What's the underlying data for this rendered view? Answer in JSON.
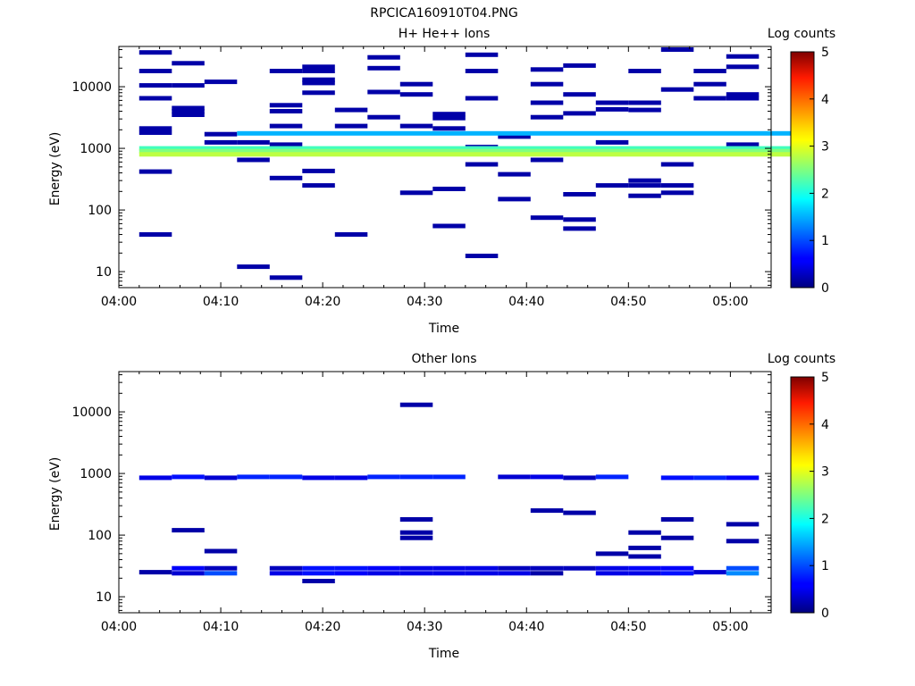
{
  "page_title": "RPCICA160910T04.PNG",
  "colorbar": {
    "label": "Log counts",
    "ticks": [
      "0",
      "1",
      "2",
      "3",
      "4",
      "5"
    ],
    "range": [
      0,
      5
    ]
  },
  "chart_data": [
    {
      "type": "heatmap",
      "title": "H+ He++ Ions",
      "xlabel": "Time",
      "ylabel": "Energy (eV)",
      "x_ticks": [
        "04:00",
        "04:10",
        "04:20",
        "04:30",
        "04:40",
        "04:50",
        "05:00"
      ],
      "y_ticks": [
        "10",
        "100",
        "1000",
        "10000"
      ],
      "y_scale": "log",
      "ylim": [
        5.5,
        45000
      ],
      "xlim_minutes": [
        0,
        64
      ],
      "time_bins_min": [
        2.0,
        5.2,
        8.4,
        11.6,
        14.8,
        18.0,
        21.2,
        24.4,
        27.6,
        30.8,
        34.0,
        37.2,
        40.4,
        43.6,
        46.8,
        50.0,
        53.2,
        56.4,
        59.6,
        62.8
      ],
      "cells": [
        {
          "t": 0,
          "e": 36000,
          "v": 0.2
        },
        {
          "t": 0,
          "e": 18000,
          "v": 0.2
        },
        {
          "t": 0,
          "e": 10500,
          "v": 0.2
        },
        {
          "t": 0,
          "e": 6500,
          "v": 0.2
        },
        {
          "t": 0,
          "e": 2100,
          "v": 0.2
        },
        {
          "t": 0,
          "e": 1800,
          "v": 0.2
        },
        {
          "t": 0,
          "e": 420,
          "v": 0.2
        },
        {
          "t": 0,
          "e": 40,
          "v": 0.2
        },
        {
          "t": 1,
          "e": 24000,
          "v": 0.2
        },
        {
          "t": 1,
          "e": 10500,
          "v": 0.2
        },
        {
          "t": 1,
          "e": 4500,
          "v": 0.2
        },
        {
          "t": 1,
          "e": 4000,
          "v": 0.2
        },
        {
          "t": 1,
          "e": 3500,
          "v": 0.2
        },
        {
          "t": 2,
          "e": 12000,
          "v": 0.2
        },
        {
          "t": 2,
          "e": 1700,
          "v": 0.2
        },
        {
          "t": 2,
          "e": 1250,
          "v": 0.2
        },
        {
          "t": 3,
          "e": 1250,
          "v": 0.2
        },
        {
          "t": 3,
          "e": 650,
          "v": 0.2
        },
        {
          "t": 3,
          "e": 12,
          "v": 0.2
        },
        {
          "t": 4,
          "e": 18000,
          "v": 0.2
        },
        {
          "t": 4,
          "e": 5000,
          "v": 0.2
        },
        {
          "t": 4,
          "e": 4000,
          "v": 0.2
        },
        {
          "t": 4,
          "e": 2300,
          "v": 0.2
        },
        {
          "t": 4,
          "e": 1150,
          "v": 0.2
        },
        {
          "t": 4,
          "e": 330,
          "v": 0.2
        },
        {
          "t": 4,
          "e": 8,
          "v": 0.2
        },
        {
          "t": 5,
          "e": 21000,
          "v": 0.2
        },
        {
          "t": 5,
          "e": 18000,
          "v": 0.2
        },
        {
          "t": 5,
          "e": 13000,
          "v": 0.2
        },
        {
          "t": 5,
          "e": 11500,
          "v": 0.2
        },
        {
          "t": 5,
          "e": 8000,
          "v": 0.2
        },
        {
          "t": 5,
          "e": 430,
          "v": 0.2
        },
        {
          "t": 5,
          "e": 250,
          "v": 0.2
        },
        {
          "t": 6,
          "e": 4200,
          "v": 0.2
        },
        {
          "t": 6,
          "e": 2300,
          "v": 0.2
        },
        {
          "t": 6,
          "e": 40,
          "v": 0.2
        },
        {
          "t": 7,
          "e": 30000,
          "v": 0.2
        },
        {
          "t": 7,
          "e": 20000,
          "v": 0.2
        },
        {
          "t": 7,
          "e": 8200,
          "v": 0.2
        },
        {
          "t": 7,
          "e": 3200,
          "v": 0.2
        },
        {
          "t": 8,
          "e": 11000,
          "v": 0.2
        },
        {
          "t": 8,
          "e": 7500,
          "v": 0.2
        },
        {
          "t": 8,
          "e": 2300,
          "v": 0.2
        },
        {
          "t": 8,
          "e": 190,
          "v": 0.2
        },
        {
          "t": 9,
          "e": 3600,
          "v": 0.2
        },
        {
          "t": 9,
          "e": 3100,
          "v": 0.2
        },
        {
          "t": 9,
          "e": 2100,
          "v": 0.2
        },
        {
          "t": 9,
          "e": 220,
          "v": 0.2
        },
        {
          "t": 9,
          "e": 55,
          "v": 0.2
        },
        {
          "t": 10,
          "e": 33000,
          "v": 0.2
        },
        {
          "t": 10,
          "e": 18000,
          "v": 0.2
        },
        {
          "t": 10,
          "e": 6500,
          "v": 0.2
        },
        {
          "t": 10,
          "e": 1050,
          "v": 0.2
        },
        {
          "t": 10,
          "e": 550,
          "v": 0.2
        },
        {
          "t": 10,
          "e": 18,
          "v": 0.2
        },
        {
          "t": 11,
          "e": 1550,
          "v": 0.2
        },
        {
          "t": 11,
          "e": 380,
          "v": 0.2
        },
        {
          "t": 11,
          "e": 150,
          "v": 0.2
        },
        {
          "t": 12,
          "e": 19000,
          "v": 0.2
        },
        {
          "t": 12,
          "e": 11000,
          "v": 0.2
        },
        {
          "t": 12,
          "e": 5500,
          "v": 0.2
        },
        {
          "t": 12,
          "e": 3200,
          "v": 0.2
        },
        {
          "t": 12,
          "e": 650,
          "v": 0.2
        },
        {
          "t": 12,
          "e": 75,
          "v": 0.2
        },
        {
          "t": 13,
          "e": 22000,
          "v": 0.2
        },
        {
          "t": 13,
          "e": 7500,
          "v": 0.2
        },
        {
          "t": 13,
          "e": 3700,
          "v": 0.2
        },
        {
          "t": 13,
          "e": 180,
          "v": 0.2
        },
        {
          "t": 13,
          "e": 70,
          "v": 0.2
        },
        {
          "t": 13,
          "e": 50,
          "v": 0.2
        },
        {
          "t": 14,
          "e": 5500,
          "v": 0.2
        },
        {
          "t": 14,
          "e": 4300,
          "v": 0.2
        },
        {
          "t": 14,
          "e": 1250,
          "v": 0.2
        },
        {
          "t": 14,
          "e": 250,
          "v": 0.2
        },
        {
          "t": 15,
          "e": 18000,
          "v": 0.2
        },
        {
          "t": 15,
          "e": 5500,
          "v": 0.2
        },
        {
          "t": 15,
          "e": 4200,
          "v": 0.2
        },
        {
          "t": 15,
          "e": 300,
          "v": 0.2
        },
        {
          "t": 15,
          "e": 250,
          "v": 0.2
        },
        {
          "t": 15,
          "e": 170,
          "v": 0.2
        },
        {
          "t": 16,
          "e": 40000,
          "v": 0.2
        },
        {
          "t": 16,
          "e": 9000,
          "v": 0.2
        },
        {
          "t": 16,
          "e": 550,
          "v": 0.2
        },
        {
          "t": 16,
          "e": 250,
          "v": 0.2
        },
        {
          "t": 16,
          "e": 190,
          "v": 0.2
        },
        {
          "t": 17,
          "e": 18000,
          "v": 0.2
        },
        {
          "t": 17,
          "e": 11000,
          "v": 0.2
        },
        {
          "t": 17,
          "e": 6500,
          "v": 0.2
        },
        {
          "t": 18,
          "e": 31000,
          "v": 0.2
        },
        {
          "t": 18,
          "e": 21000,
          "v": 0.2
        },
        {
          "t": 18,
          "e": 7500,
          "v": 0.2
        },
        {
          "t": 18,
          "e": 6500,
          "v": 0.2
        },
        {
          "t": 18,
          "e": 1150,
          "v": 0.2
        }
      ],
      "bands": [
        {
          "t0": 0,
          "t1": 19,
          "e": 1000,
          "v": 2.2
        },
        {
          "t0": 0,
          "t1": 19,
          "e": 900,
          "v": 2.5
        },
        {
          "t0": 0,
          "t1": 19,
          "e": 800,
          "v": 2.8
        },
        {
          "t0": 3,
          "t1": 19,
          "e": 1750,
          "v": 1.5
        }
      ]
    },
    {
      "type": "heatmap",
      "title": "Other Ions",
      "xlabel": "Time",
      "ylabel": "Energy (eV)",
      "x_ticks": [
        "04:00",
        "04:10",
        "04:20",
        "04:30",
        "04:40",
        "04:50",
        "05:00"
      ],
      "y_ticks": [
        "10",
        "100",
        "1000",
        "10000"
      ],
      "y_scale": "log",
      "ylim": [
        5.5,
        45000
      ],
      "xlim_minutes": [
        0,
        64
      ],
      "time_bins_min": [
        2.0,
        5.2,
        8.4,
        11.6,
        14.8,
        18.0,
        21.2,
        24.4,
        27.6,
        30.8,
        34.0,
        37.2,
        40.4,
        43.6,
        46.8,
        50.0,
        53.2,
        56.4,
        59.6,
        62.8
      ],
      "cells": [
        {
          "t": 0,
          "e": 850,
          "v": 0.5
        },
        {
          "t": 1,
          "e": 880,
          "v": 0.7
        },
        {
          "t": 2,
          "e": 850,
          "v": 0.4
        },
        {
          "t": 3,
          "e": 880,
          "v": 0.8
        },
        {
          "t": 4,
          "e": 880,
          "v": 0.8
        },
        {
          "t": 5,
          "e": 850,
          "v": 0.5
        },
        {
          "t": 6,
          "e": 850,
          "v": 0.5
        },
        {
          "t": 7,
          "e": 880,
          "v": 0.8
        },
        {
          "t": 8,
          "e": 880,
          "v": 0.8
        },
        {
          "t": 9,
          "e": 880,
          "v": 0.8
        },
        {
          "t": 11,
          "e": 880,
          "v": 0.4
        },
        {
          "t": 12,
          "e": 880,
          "v": 0.5
        },
        {
          "t": 13,
          "e": 850,
          "v": 0.3
        },
        {
          "t": 14,
          "e": 880,
          "v": 0.8
        },
        {
          "t": 16,
          "e": 850,
          "v": 0.7
        },
        {
          "t": 17,
          "e": 850,
          "v": 0.8
        },
        {
          "t": 18,
          "e": 850,
          "v": 0.6
        },
        {
          "t": 1,
          "e": 120,
          "v": 0.2
        },
        {
          "t": 2,
          "e": 55,
          "v": 0.2
        },
        {
          "t": 8,
          "e": 13000,
          "v": 0.2
        },
        {
          "t": 8,
          "e": 180,
          "v": 0.2
        },
        {
          "t": 8,
          "e": 110,
          "v": 0.2
        },
        {
          "t": 8,
          "e": 90,
          "v": 0.2
        },
        {
          "t": 12,
          "e": 250,
          "v": 0.2
        },
        {
          "t": 13,
          "e": 230,
          "v": 0.2
        },
        {
          "t": 14,
          "e": 50,
          "v": 0.2
        },
        {
          "t": 15,
          "e": 110,
          "v": 0.2
        },
        {
          "t": 15,
          "e": 62,
          "v": 0.2
        },
        {
          "t": 15,
          "e": 45,
          "v": 0.2
        },
        {
          "t": 16,
          "e": 180,
          "v": 0.2
        },
        {
          "t": 16,
          "e": 90,
          "v": 0.2
        },
        {
          "t": 18,
          "e": 150,
          "v": 0.2
        },
        {
          "t": 18,
          "e": 80,
          "v": 0.2
        },
        {
          "t": 0,
          "e": 25,
          "v": 0.2
        },
        {
          "t": 1,
          "e": 29,
          "v": 0.6
        },
        {
          "t": 1,
          "e": 24,
          "v": 0.4
        },
        {
          "t": 2,
          "e": 29,
          "v": 0.3
        },
        {
          "t": 2,
          "e": 24,
          "v": 1.0
        },
        {
          "t": 4,
          "e": 29,
          "v": 0.3
        },
        {
          "t": 4,
          "e": 24,
          "v": 0.5
        },
        {
          "t": 5,
          "e": 29,
          "v": 0.7
        },
        {
          "t": 5,
          "e": 24,
          "v": 0.7
        },
        {
          "t": 5,
          "e": 18,
          "v": 0.2
        },
        {
          "t": 6,
          "e": 29,
          "v": 0.7
        },
        {
          "t": 6,
          "e": 24,
          "v": 0.6
        },
        {
          "t": 7,
          "e": 29,
          "v": 0.6
        },
        {
          "t": 7,
          "e": 24,
          "v": 0.5
        },
        {
          "t": 8,
          "e": 29,
          "v": 0.5
        },
        {
          "t": 8,
          "e": 24,
          "v": 0.5
        },
        {
          "t": 9,
          "e": 29,
          "v": 0.5
        },
        {
          "t": 9,
          "e": 24,
          "v": 0.5
        },
        {
          "t": 10,
          "e": 29,
          "v": 0.5
        },
        {
          "t": 10,
          "e": 24,
          "v": 0.5
        },
        {
          "t": 11,
          "e": 29,
          "v": 0.3
        },
        {
          "t": 11,
          "e": 24,
          "v": 0.5
        },
        {
          "t": 12,
          "e": 29,
          "v": 0.3
        },
        {
          "t": 12,
          "e": 24,
          "v": 0.2
        },
        {
          "t": 13,
          "e": 29,
          "v": 0.3
        },
        {
          "t": 14,
          "e": 29,
          "v": 0.5
        },
        {
          "t": 14,
          "e": 24,
          "v": 0.5
        },
        {
          "t": 15,
          "e": 29,
          "v": 0.6
        },
        {
          "t": 15,
          "e": 24,
          "v": 0.5
        },
        {
          "t": 16,
          "e": 29,
          "v": 0.6
        },
        {
          "t": 16,
          "e": 24,
          "v": 0.7
        },
        {
          "t": 17,
          "e": 25,
          "v": 0.4
        },
        {
          "t": 18,
          "e": 29,
          "v": 1.0
        },
        {
          "t": 18,
          "e": 24,
          "v": 1.3
        }
      ],
      "bands": []
    }
  ]
}
